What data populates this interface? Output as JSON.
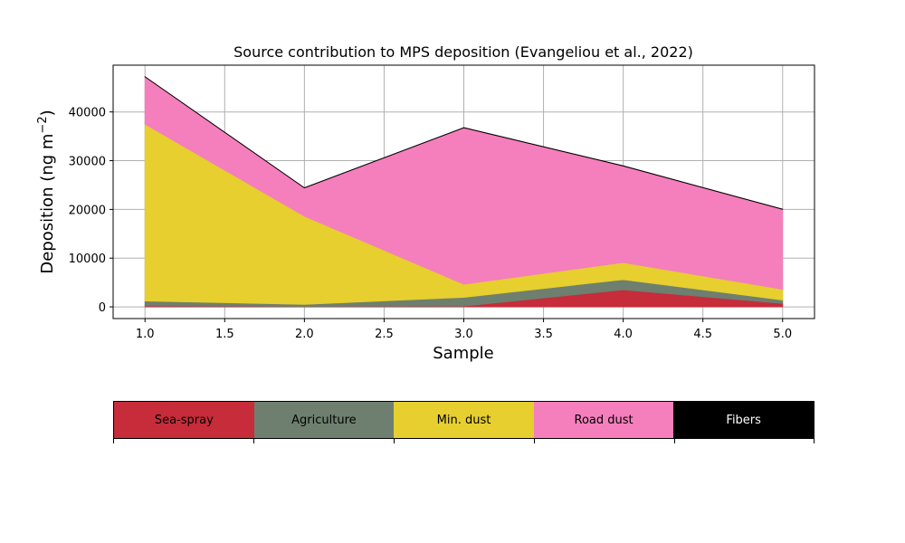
{
  "chart_data": {
    "type": "area",
    "stacked": true,
    "title": "Source contribution to MPS deposition (Evangeliou et al., 2022)",
    "xlabel": "Sample",
    "ylabel": "Deposition (ng m",
    "ylabel_sup": "−2",
    "ylabel_close": ")",
    "x": [
      1,
      2,
      3,
      4,
      5
    ],
    "xlim": [
      0.8,
      5.2
    ],
    "ylim": [
      -2400,
      49600
    ],
    "xticks": [
      1.0,
      1.5,
      2.0,
      2.5,
      3.0,
      3.5,
      4.0,
      4.5,
      5.0
    ],
    "xtick_labels": [
      "1.0",
      "1.5",
      "2.0",
      "2.5",
      "3.0",
      "3.5",
      "4.0",
      "4.5",
      "5.0"
    ],
    "yticks": [
      0,
      10000,
      20000,
      30000,
      40000
    ],
    "ytick_labels": [
      "0",
      "10000",
      "20000",
      "30000",
      "40000"
    ],
    "grid": true,
    "legend_placement": "below",
    "series": [
      {
        "name": "Sea-spray",
        "color": "#c62c3a",
        "values": [
          200,
          100,
          150,
          3500,
          700
        ]
      },
      {
        "name": "Agriculture",
        "color": "#6e7f6f",
        "values": [
          1000,
          400,
          1800,
          2100,
          700
        ]
      },
      {
        "name": "Min. dust",
        "color": "#e6cf2e",
        "values": [
          36300,
          18100,
          2700,
          3500,
          2200
        ]
      },
      {
        "name": "Road dust",
        "color": "#f47fbc",
        "values": [
          9700,
          5800,
          32100,
          19800,
          16400
        ]
      },
      {
        "name": "Fibers",
        "color": "#000000",
        "values": [
          50,
          50,
          50,
          50,
          50
        ]
      }
    ]
  }
}
